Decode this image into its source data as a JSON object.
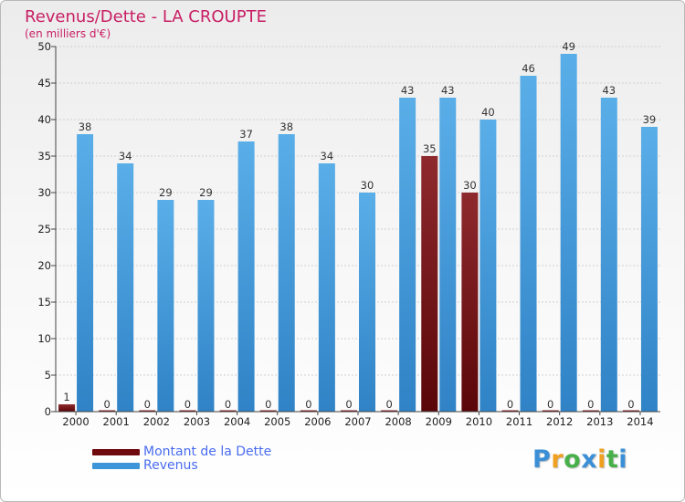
{
  "title": "Revenus/Dette - LA CROUPTE",
  "subtitle": "(en milliers d'€)",
  "colors": {
    "title": "#c81e64",
    "dette": "#7a0d12",
    "revenus": "#3b95d8"
  },
  "legend": [
    {
      "name": "Montant de la Dette",
      "color": "#7a0d12"
    },
    {
      "name": "Revenus",
      "color": "#3b95d8"
    }
  ],
  "logo": {
    "letters": [
      "P",
      "r",
      "o",
      "x",
      "i",
      "t",
      "i"
    ],
    "colors": [
      "#3b8fd6",
      "#f0a020",
      "#48b04a",
      "#3b8fd6",
      "#f0a020",
      "#48b04a",
      "#3b8fd6"
    ]
  },
  "chart_data": {
    "type": "bar",
    "title": "Revenus/Dette - LA CROUPTE",
    "subtitle": "(en milliers d'€)",
    "categories": [
      "2000",
      "2001",
      "2002",
      "2003",
      "2004",
      "2005",
      "2006",
      "2007",
      "2008",
      "2009",
      "2010",
      "2011",
      "2012",
      "2013",
      "2014"
    ],
    "series": [
      {
        "name": "Montant de la Dette",
        "values": [
          1,
          0,
          0,
          0,
          0,
          0,
          0,
          0,
          0,
          35,
          30,
          0,
          0,
          0,
          0
        ]
      },
      {
        "name": "Revenus",
        "values": [
          38,
          34,
          29,
          29,
          37,
          38,
          34,
          30,
          43,
          43,
          40,
          46,
          49,
          43,
          39
        ]
      }
    ],
    "ylim": [
      0,
      50
    ],
    "yticks": [
      0,
      5,
      10,
      15,
      20,
      25,
      30,
      35,
      40,
      45,
      50
    ],
    "grid": true,
    "legend_position": "bottom-left"
  }
}
